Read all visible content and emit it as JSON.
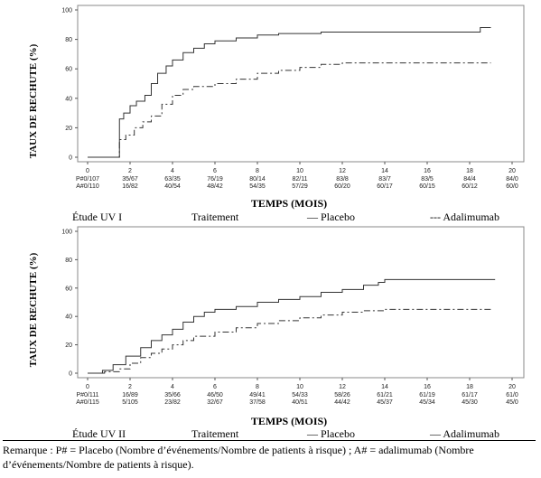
{
  "chart_data": [
    {
      "type": "line",
      "study": "Étude UV I",
      "ylabel": "TAUX DE RECHUTE (%)",
      "xlabel": "TEMPS (MOIS)",
      "xlim": [
        0,
        20
      ],
      "ylim": [
        0,
        100
      ],
      "xticks": [
        0,
        2,
        4,
        6,
        8,
        10,
        12,
        14,
        16,
        18,
        20
      ],
      "yticks": [
        0,
        20,
        40,
        60,
        80,
        100
      ],
      "legend": {
        "treatment_label": "Traitement",
        "placebo_label": "— Placebo",
        "adalimumab_label": "--- Adalimumab"
      },
      "series": [
        {
          "name": "Placebo",
          "style": "solid",
          "x": [
            0,
            1.4,
            1.5,
            1.7,
            2.0,
            2.3,
            2.7,
            3.0,
            3.3,
            3.7,
            4.0,
            4.5,
            5.0,
            5.5,
            6.0,
            7.0,
            8.0,
            9.0,
            10.0,
            11.0,
            12.0,
            14.0,
            16.0,
            18.0,
            18.5,
            19.0
          ],
          "y": [
            0,
            0,
            26,
            30,
            35,
            38,
            42,
            50,
            57,
            62,
            66,
            71,
            74,
            77,
            79,
            81,
            83,
            84,
            84,
            85,
            85,
            85,
            85,
            85,
            88,
            88
          ]
        },
        {
          "name": "Adalimumab",
          "style": "dashdot",
          "x": [
            0,
            1.4,
            1.5,
            1.8,
            2.2,
            2.6,
            3.0,
            3.5,
            4.0,
            4.5,
            5.0,
            6.0,
            7.0,
            8.0,
            9.0,
            10.0,
            11.0,
            12.0,
            14.0,
            16.0,
            18.0,
            19.0
          ],
          "y": [
            0,
            0,
            12,
            15,
            20,
            24,
            28,
            36,
            42,
            46,
            48,
            50,
            53,
            57,
            59,
            61,
            63,
            64,
            64,
            64,
            64,
            64
          ]
        }
      ],
      "risk_table": {
        "placebo": {
          "label": "P#0/107",
          "values": [
            "35/67",
            "63/35",
            "76/19",
            "80/14",
            "82/11",
            "83/8",
            "83/7",
            "83/5",
            "84/4",
            "84/0"
          ]
        },
        "adalimumab": {
          "label": "A#0/110",
          "values": [
            "16/82",
            "40/54",
            "48/42",
            "54/35",
            "57/29",
            "60/20",
            "60/17",
            "60/15",
            "60/12",
            "60/0"
          ]
        }
      }
    },
    {
      "type": "line",
      "study": "Étude UV II",
      "ylabel": "TAUX DE RECHUTE (%)",
      "xlabel": "TEMPS (MOIS)",
      "xlim": [
        0,
        20
      ],
      "ylim": [
        0,
        100
      ],
      "xticks": [
        0,
        2,
        4,
        6,
        8,
        10,
        12,
        14,
        16,
        18,
        20
      ],
      "yticks": [
        0,
        20,
        40,
        60,
        80,
        100
      ],
      "legend": {
        "treatment_label": "Traitement",
        "placebo_label": "— Placebo",
        "adalimumab_label": "— Adalimumab"
      },
      "series": [
        {
          "name": "Placebo",
          "style": "solid",
          "x": [
            0,
            0.7,
            1.2,
            1.8,
            2.5,
            3.0,
            3.5,
            4.0,
            4.5,
            5.0,
            5.5,
            6.0,
            7.0,
            8.0,
            9.0,
            10.0,
            11.0,
            12.0,
            13.0,
            13.7,
            14.0,
            16.0,
            18.0,
            19.2
          ],
          "y": [
            0,
            2,
            6,
            12,
            18,
            23,
            27,
            31,
            36,
            40,
            43,
            45,
            47,
            50,
            52,
            54,
            57,
            59,
            62,
            64,
            66,
            66,
            66,
            66
          ]
        },
        {
          "name": "Adalimumab",
          "style": "dashdot",
          "x": [
            0,
            0.8,
            1.5,
            2.0,
            2.5,
            3.0,
            3.5,
            4.0,
            4.5,
            5.0,
            6.0,
            7.0,
            8.0,
            9.0,
            10.0,
            11.0,
            12.0,
            13.0,
            14.0,
            16.0,
            18.0,
            19.0
          ],
          "y": [
            0,
            1,
            3,
            7,
            11,
            14,
            17,
            20,
            23,
            26,
            29,
            32,
            35,
            37,
            39,
            41,
            43,
            44,
            45,
            45,
            45,
            45
          ]
        }
      ],
      "risk_table": {
        "placebo": {
          "label": "P#0/111",
          "values": [
            "16/89",
            "35/66",
            "46/50",
            "49/41",
            "54/33",
            "58/26",
            "61/21",
            "61/19",
            "61/17",
            "61/0"
          ]
        },
        "adalimumab": {
          "label": "A#0/115",
          "values": [
            "5/105",
            "23/82",
            "32/67",
            "37/58",
            "40/51",
            "44/42",
            "45/37",
            "45/34",
            "45/30",
            "45/0"
          ]
        }
      }
    }
  ],
  "note": "Remarque : P# = Placebo (Nombre d’événements/Nombre de patients à risque) ; A# = adalimumab (Nombre d’événements/Nombre de patients à risque)."
}
